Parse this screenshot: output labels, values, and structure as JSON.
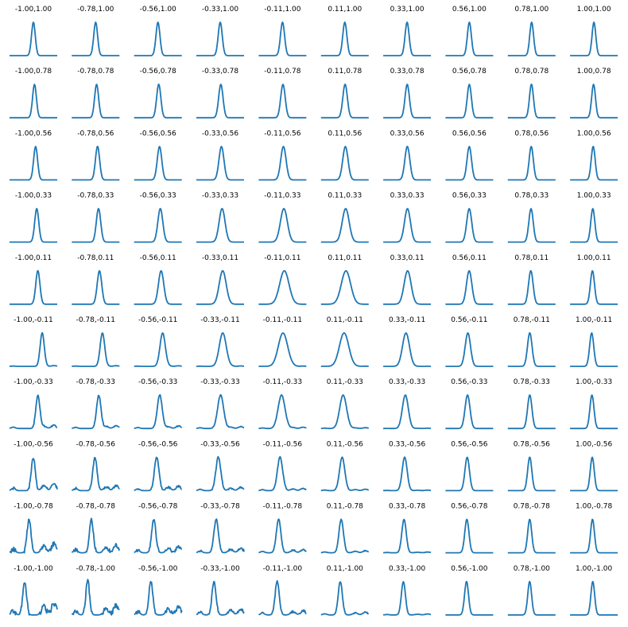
{
  "chart_data": {
    "type": "line",
    "axes_visible": false,
    "line_color": "#1f77b4",
    "grid": {
      "rows": 10,
      "cols": 10,
      "col_values": [
        -1.0,
        -0.78,
        -0.56,
        -0.33,
        -0.11,
        0.11,
        0.33,
        0.56,
        0.78,
        1.0
      ],
      "row_values": [
        1.0,
        0.78,
        0.56,
        0.33,
        0.11,
        -0.11,
        -0.33,
        -0.56,
        -0.78,
        -1.0
      ]
    },
    "panel_titles": [
      [
        "-1.00,1.00",
        "-0.78,1.00",
        "-0.56,1.00",
        "-0.33,1.00",
        "-0.11,1.00",
        "0.11,1.00",
        "0.33,1.00",
        "0.56,1.00",
        "0.78,1.00",
        "1.00,1.00"
      ],
      [
        "-1.00,0.78",
        "-0.78,0.78",
        "-0.56,0.78",
        "-0.33,0.78",
        "-0.11,0.78",
        "0.11,0.78",
        "0.33,0.78",
        "0.56,0.78",
        "0.78,0.78",
        "1.00,0.78"
      ],
      [
        "-1.00,0.56",
        "-0.78,0.56",
        "-0.56,0.56",
        "-0.33,0.56",
        "-0.11,0.56",
        "0.11,0.56",
        "0.33,0.56",
        "0.56,0.56",
        "0.78,0.56",
        "1.00,0.56"
      ],
      [
        "-1.00,0.33",
        "-0.78,0.33",
        "-0.56,0.33",
        "-0.33,0.33",
        "-0.11,0.33",
        "0.11,0.33",
        "0.33,0.33",
        "0.56,0.33",
        "0.78,0.33",
        "1.00,0.33"
      ],
      [
        "-1.00,0.11",
        "-0.78,0.11",
        "-0.56,0.11",
        "-0.33,0.11",
        "-0.11,0.11",
        "0.11,0.11",
        "0.33,0.11",
        "0.56,0.11",
        "0.78,0.11",
        "1.00,0.11"
      ],
      [
        "-1.00,-0.11",
        "-0.78,-0.11",
        "-0.56,-0.11",
        "-0.33,-0.11",
        "-0.11,-0.11",
        "0.11,-0.11",
        "0.33,-0.11",
        "0.56,-0.11",
        "0.78,-0.11",
        "1.00,-0.11"
      ],
      [
        "-1.00,-0.33",
        "-0.78,-0.33",
        "-0.56,-0.33",
        "-0.33,-0.33",
        "-0.11,-0.33",
        "0.11,-0.33",
        "0.33,-0.33",
        "0.56,-0.33",
        "0.78,-0.33",
        "1.00,-0.33"
      ],
      [
        "-1.00,-0.56",
        "-0.78,-0.56",
        "-0.56,-0.56",
        "-0.33,-0.56",
        "-0.11,-0.56",
        "0.11,-0.56",
        "0.33,-0.56",
        "0.56,-0.56",
        "0.78,-0.56",
        "1.00,-0.56"
      ],
      [
        "-1.00,-0.78",
        "-0.78,-0.78",
        "-0.56,-0.78",
        "-0.33,-0.78",
        "-0.11,-0.78",
        "0.11,-0.78",
        "0.33,-0.78",
        "0.56,-0.78",
        "0.78,-0.78",
        "1.00,-0.78"
      ],
      [
        "-1.00,-1.00",
        "-0.78,-1.00",
        "-0.56,-1.00",
        "-0.33,-1.00",
        "-0.11,-1.00",
        "0.11,-1.00",
        "0.33,-1.00",
        "0.56,-1.00",
        "0.78,-1.00",
        "1.00,-1.00"
      ]
    ]
  }
}
